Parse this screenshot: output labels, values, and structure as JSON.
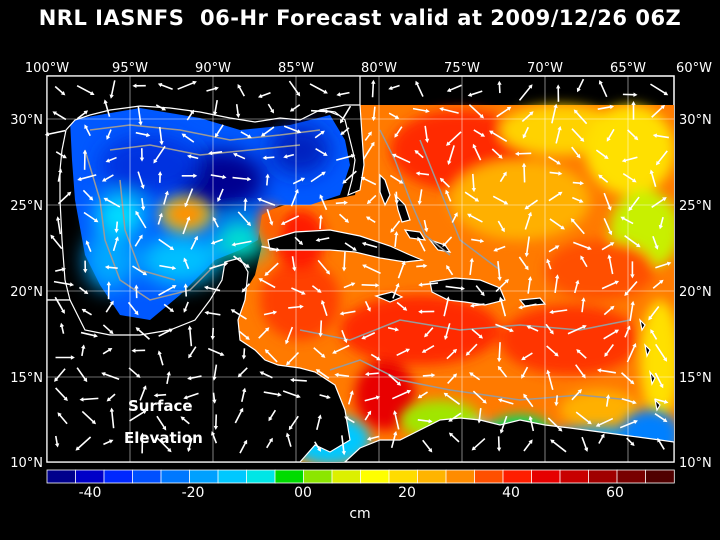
{
  "title": "NRL IASNFS  06-Hr Forecast valid at 2009/12/26 06Z",
  "map_label": {
    "line1": "Surface",
    "line2": "Elevation"
  },
  "lon_labels": [
    "100°W",
    "95°W",
    "90°W",
    "85°W",
    "80°W",
    "75°W",
    "70°W",
    "65°W",
    "60°W"
  ],
  "lat_labels": [
    "30°N",
    "25°N",
    "20°N",
    "15°N",
    "10°N"
  ],
  "colorbar": {
    "tick_labels": [
      "-40",
      "-20",
      "00",
      "20",
      "40",
      "60"
    ],
    "unit": "cm",
    "colors": [
      "#00008c",
      "#0000c8",
      "#0028ff",
      "#0050ff",
      "#0078ff",
      "#00a0ff",
      "#00c8ff",
      "#00e6e6",
      "#00dc00",
      "#8ce600",
      "#dcf000",
      "#ffff00",
      "#ffdc00",
      "#ffb400",
      "#ff8c00",
      "#ff5000",
      "#ff1e00",
      "#e60000",
      "#c80000",
      "#a00000",
      "#780000",
      "#500000"
    ]
  }
}
